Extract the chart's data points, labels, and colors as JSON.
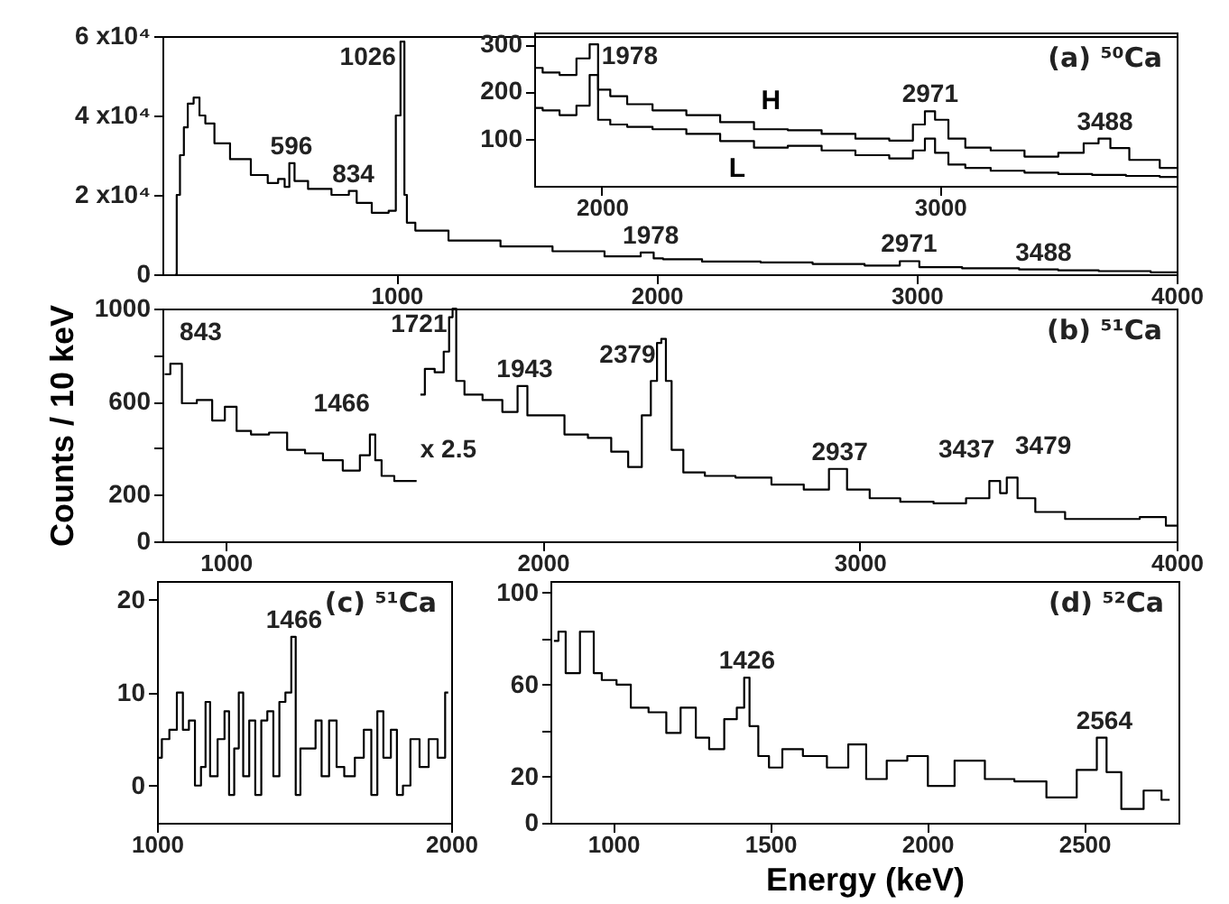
{
  "chart_data": [
    {
      "type": "step",
      "title": "(a) ⁵⁰Ca",
      "x": [
        150,
        160,
        175,
        190,
        205,
        235,
        250,
        280,
        320,
        400,
        480,
        530,
        560,
        580,
        596,
        620,
        700,
        800,
        834,
        860,
        950,
        990,
        1005,
        1026,
        1035,
        1045,
        1100,
        1300,
        1500,
        1700,
        1900,
        1978,
        2000,
        2050,
        2300,
        2500,
        2700,
        2900,
        2971,
        3050,
        3300,
        3488,
        3600,
        3800,
        4000
      ],
      "values": [
        0,
        20000,
        30000,
        37000,
        43000,
        44500,
        40000,
        38000,
        33000,
        29000,
        25000,
        23000,
        24000,
        22000,
        28000,
        23500,
        21500,
        20000,
        21000,
        18000,
        15500,
        16000,
        40000,
        58600,
        20000,
        13000,
        11000,
        8500,
        7000,
        5800,
        4500,
        5500,
        4000,
        3800,
        3200,
        3000,
        2600,
        2200,
        3300,
        1800,
        1500,
        1200,
        1000,
        800,
        500
      ],
      "color": "#000000",
      "xlim": [
        100,
        4000
      ],
      "xticks": [
        1000,
        2000,
        3000,
        4000
      ],
      "ylim": [
        0,
        60000
      ],
      "yticks": [
        0,
        {
          "value": 20000,
          "label": "2 x10⁴"
        },
        {
          "value": 40000,
          "label": "4 x10⁴"
        },
        {
          "value": 60000,
          "label": "6 x10⁴"
        }
      ],
      "annotations": [
        {
          "text": "1026",
          "x": 1026,
          "y": 58600
        },
        {
          "text": "596",
          "x": 596,
          "y": 28000
        },
        {
          "text": "834",
          "x": 834,
          "y": 21000
        },
        {
          "text": "1978",
          "x": 1978,
          "y": 5500
        },
        {
          "text": "2971",
          "x": 2971,
          "y": 3300
        },
        {
          "text": "3488",
          "x": 3488,
          "y": 1200
        }
      ]
    },
    {
      "type": "step",
      "xlim": [
        1800,
        3700
      ],
      "xticks": [
        2000,
        3000
      ],
      "ylim": [
        0,
        325
      ],
      "yticks": [
        100,
        200,
        300
      ],
      "series": [
        {
          "name": "H",
          "color": "#000000",
          "x": [
            1800,
            1850,
            1900,
            1950,
            1978,
            2000,
            2050,
            2100,
            2200,
            2300,
            2400,
            2500,
            2600,
            2700,
            2800,
            2900,
            2940,
            2971,
            3000,
            3050,
            3100,
            3200,
            3300,
            3400,
            3450,
            3488,
            3520,
            3600,
            3700
          ],
          "values": [
            250,
            240,
            235,
            270,
            300,
            204,
            190,
            173,
            160,
            150,
            135,
            120,
            118,
            110,
            100,
            96,
            130,
            158,
            140,
            100,
            81,
            75,
            62,
            70,
            90,
            100,
            80,
            55,
            38
          ]
        },
        {
          "name": "L",
          "color": "#000000",
          "x": [
            1800,
            1850,
            1900,
            1950,
            1978,
            2000,
            2050,
            2100,
            2200,
            2300,
            2400,
            2500,
            2600,
            2700,
            2800,
            2900,
            2940,
            2971,
            3000,
            3050,
            3100,
            3200,
            3300,
            3400,
            3500,
            3600,
            3700
          ],
          "values": [
            165,
            160,
            150,
            170,
            235,
            140,
            130,
            125,
            120,
            110,
            95,
            81,
            85,
            75,
            65,
            58,
            75,
            100,
            70,
            45,
            38,
            32,
            28,
            25,
            23,
            21,
            19
          ]
        }
      ],
      "annotations": [
        {
          "text": "1978",
          "x": 1978,
          "y": 300
        },
        {
          "text": "2971",
          "x": 2971,
          "y": 158
        },
        {
          "text": "3488",
          "x": 3488,
          "y": 100
        }
      ]
    },
    {
      "type": "step",
      "title": "(b) ⁵¹Ca",
      "ylabel": "Counts / 10 keV",
      "xlim": [
        800,
        4000
      ],
      "xticks": [
        1000,
        2000,
        3000,
        4000
      ],
      "ylim": [
        0,
        1000
      ],
      "yticks": [
        {
          "value": 0,
          "label": "0"
        },
        {
          "value": 200,
          "label": "200"
        },
        {
          "value": 400,
          "label": null
        },
        {
          "value": 600,
          "label": "600"
        },
        {
          "value": 800,
          "label": null
        },
        {
          "value": 1000,
          "label": "1000"
        }
      ],
      "series": [
        {
          "color": "#000000",
          "x": [
            807,
            843,
            880,
            937,
            977,
            1017,
            1051,
            1108,
            1165,
            1222,
            1278,
            1335,
            1403,
            1443,
            1466,
            1477,
            1506,
            1557,
            1602
          ],
          "values": [
            718,
            763,
            593,
            607,
            519,
            578,
            474,
            459,
            467,
            393,
            378,
            348,
            304,
            370,
            459,
            348,
            281,
            259,
            259
          ]
        },
        {
          "color": "#000000",
          "x": [
            1614,
            1642,
            1676,
            1699,
            1710,
            1721,
            1733,
            1773,
            1847,
            1898,
            1943,
            1960,
            2040,
            2097,
            2188,
            2244,
            2295,
            2330,
            2352,
            2369,
            2379,
            2398,
            2415,
            2472,
            2551,
            2665,
            2778,
            2869,
            2937,
            2983,
            3080,
            3176,
            3290,
            3381,
            3437,
            3449,
            3479,
            3517,
            3591,
            3705,
            3835,
            3932,
            4000
          ],
          "values": [
            630,
            741,
            726,
            815,
            963,
            1000,
            689,
            630,
            607,
            556,
            667,
            541,
            541,
            459,
            444,
            385,
            319,
            541,
            689,
            852,
            870,
            689,
            393,
            296,
            281,
            274,
            244,
            222,
            311,
            222,
            185,
            170,
            163,
            185,
            259,
            207,
            274,
            185,
            126,
            96,
            96,
            104,
            67
          ]
        }
      ],
      "annotations": [
        {
          "text": "843",
          "x": 843,
          "y": 763
        },
        {
          "text": "1721",
          "x": 1721,
          "y": 1000
        },
        {
          "text": "1943",
          "x": 1943,
          "y": 667
        },
        {
          "text": "1466",
          "x": 1466,
          "y": 459
        },
        {
          "text": "x 2.5",
          "x": 1602,
          "y": 259
        },
        {
          "text": "2379",
          "x": 2379,
          "y": 870
        },
        {
          "text": "2937",
          "x": 2937,
          "y": 311
        },
        {
          "text": "3437",
          "x": 3437,
          "y": 259
        },
        {
          "text": "3479",
          "x": 3479,
          "y": 274
        }
      ]
    },
    {
      "type": "step",
      "title": "(c) ⁵¹Ca",
      "xlim": [
        1000,
        2000
      ],
      "xticks": [
        1000,
        2000
      ],
      "ylim": [
        -4,
        22
      ],
      "yticks": [
        0,
        10,
        20
      ],
      "x": [
        1006,
        1027,
        1057,
        1078,
        1098,
        1119,
        1139,
        1160,
        1170,
        1191,
        1221,
        1238,
        1252,
        1273,
        1283,
        1303,
        1324,
        1344,
        1365,
        1385,
        1406,
        1426,
        1447,
        1466,
        1477,
        1498,
        1529,
        1549,
        1570,
        1600,
        1621,
        1652,
        1693,
        1713,
        1744,
        1754,
        1785,
        1805,
        1826,
        1846,
        1877,
        1908,
        1939,
        1969,
        1990
      ],
      "values": [
        3,
        5,
        6,
        10,
        6,
        7,
        0,
        2,
        9,
        1,
        5,
        8,
        -1,
        4,
        10,
        1,
        7,
        -1,
        7,
        8,
        1,
        9,
        10,
        16,
        -1,
        4,
        4,
        7,
        1,
        7,
        2,
        1,
        3,
        6,
        -1,
        8,
        3,
        6,
        -1,
        0,
        5,
        2,
        5,
        3,
        10
      ],
      "color": "#000000",
      "annotations": [
        {
          "text": "1466",
          "x": 1466,
          "y": 16
        }
      ]
    },
    {
      "type": "step",
      "title": "(d) ⁵²Ca",
      "xlabel": "Energy (keV)",
      "xlim": [
        800,
        2800
      ],
      "xticks": [
        1000,
        1500,
        2000,
        2500
      ],
      "ylim": [
        0,
        105
      ],
      "yticks": [
        {
          "value": 0,
          "label": "0"
        },
        {
          "value": 20,
          "label": "20"
        },
        {
          "value": 40,
          "label": null
        },
        {
          "value": 60,
          "label": "60"
        },
        {
          "value": 80,
          "label": null
        },
        {
          "value": 100,
          "label": "100"
        }
      ],
      "x": [
        811,
        840,
        857,
        931,
        945,
        982,
        1039,
        1073,
        1152,
        1186,
        1243,
        1283,
        1328,
        1379,
        1408,
        1426,
        1442,
        1482,
        1510,
        1567,
        1641,
        1720,
        1777,
        1834,
        1908,
        1965,
        2039,
        2135,
        2232,
        2323,
        2436,
        2516,
        2564,
        2578,
        2658,
        2720,
        2772
      ],
      "values": [
        79,
        83,
        65,
        83,
        65,
        62,
        60,
        50,
        48,
        39,
        50,
        37,
        32,
        45,
        50,
        63,
        42,
        29,
        24,
        32,
        29,
        24,
        34,
        19,
        27,
        29,
        16,
        27,
        19,
        18,
        11,
        23,
        37,
        22,
        6,
        14,
        10
      ],
      "color": "#000000",
      "annotations": [
        {
          "text": "1426",
          "x": 1426,
          "y": 63
        },
        {
          "text": "2564",
          "x": 2564,
          "y": 37
        }
      ]
    }
  ]
}
